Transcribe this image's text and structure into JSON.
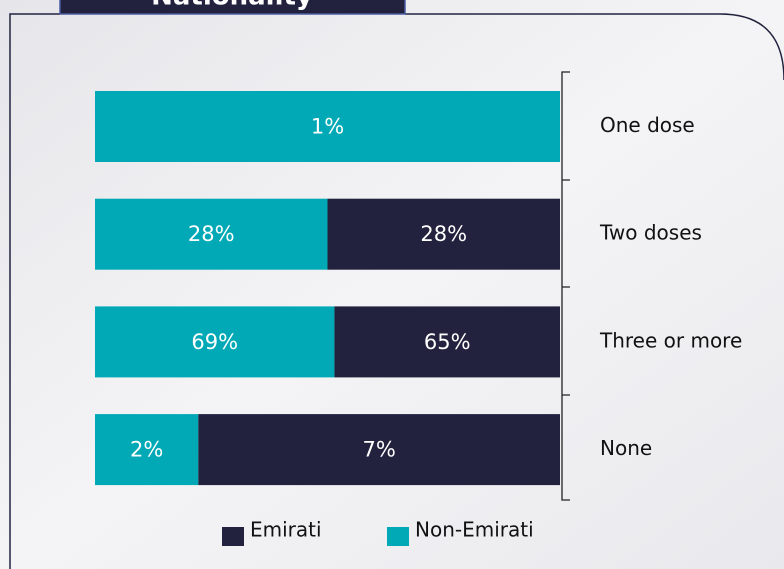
{
  "chart_data": {
    "type": "bar",
    "orientation": "horizontal",
    "stacking": "percent",
    "title": "Nationality",
    "categories": [
      "One dose",
      "Two doses",
      "Three or more",
      "None"
    ],
    "series": [
      {
        "name": "Emirati",
        "color": "#22223f",
        "values": [
          null,
          28,
          65,
          7
        ],
        "value_labels": [
          null,
          "28%",
          "65%",
          "7%"
        ]
      },
      {
        "name": "Non-Emirati",
        "color": "#00a9b5",
        "values": [
          1,
          28,
          69,
          2
        ],
        "value_labels": [
          "1%",
          "28%",
          "69%",
          "2%"
        ]
      }
    ]
  }
}
